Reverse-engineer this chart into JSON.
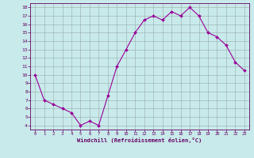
{
  "x": [
    0,
    1,
    2,
    3,
    4,
    5,
    6,
    7,
    8,
    9,
    10,
    11,
    12,
    13,
    14,
    15,
    16,
    17,
    18,
    19,
    20,
    21,
    22,
    23
  ],
  "y": [
    10,
    7,
    6.5,
    6,
    5.5,
    4,
    4.5,
    4,
    7.5,
    11,
    13,
    15,
    16.5,
    17,
    16.5,
    17.5,
    17,
    18,
    17,
    15,
    14.5,
    13.5,
    11.5,
    10.5
  ],
  "line_color": "#990099",
  "marker_color": "#990099",
  "bg_color": "#c8eaea",
  "grid_color": "#99aaaa",
  "xlabel": "Windchill (Refroidissement éolien,°C)",
  "ylabel_ticks": [
    4,
    5,
    6,
    7,
    8,
    9,
    10,
    11,
    12,
    13,
    14,
    15,
    16,
    17,
    18
  ],
  "xlim": [
    -0.5,
    23.5
  ],
  "ylim": [
    3.5,
    18.5
  ],
  "xlabel_color": "#660066",
  "tick_color": "#660066",
  "spine_color": "#660066"
}
